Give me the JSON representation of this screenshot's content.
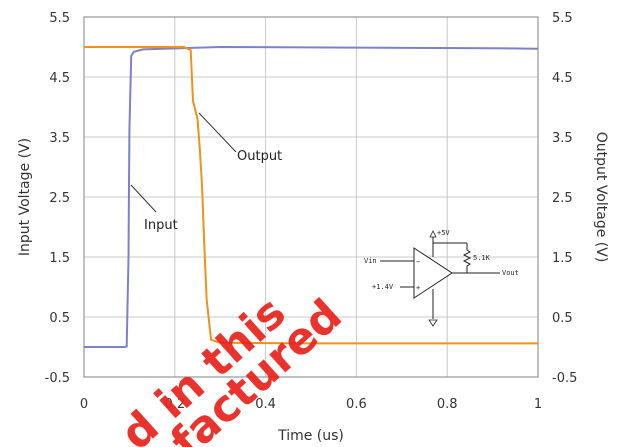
{
  "chart_data": {
    "type": "line",
    "xlabel": "Time (us)",
    "ylabel": "Input Voltage (V)",
    "y2label": "Output Voltage (V)",
    "xlim": [
      0,
      1
    ],
    "ylim": [
      -0.5,
      5.5
    ],
    "x_ticks": [
      "0",
      "0.2",
      "0.4",
      "0.6",
      "0.8",
      "1"
    ],
    "y_ticks": [
      "-0.5",
      "0.5",
      "1.5",
      "2.5",
      "3.5",
      "4.5",
      "5.5"
    ],
    "grid": true,
    "series": [
      {
        "name": "Input",
        "color": "#7b83c8",
        "x": [
          0,
          0.09,
          0.094,
          0.098,
          0.1,
          0.104,
          0.11,
          0.13,
          0.3,
          0.6,
          0.9,
          1.0
        ],
        "y": [
          0.0,
          0.0,
          0.01,
          1.5,
          3.6,
          4.85,
          4.92,
          4.96,
          5.0,
          4.99,
          4.98,
          4.97
        ]
      },
      {
        "name": "Output",
        "color": "#f0901d",
        "x": [
          0,
          0.1,
          0.22,
          0.235,
          0.24,
          0.25,
          0.255,
          0.26,
          0.265,
          0.27,
          0.28,
          0.3,
          0.5,
          0.8,
          1.0
        ],
        "y": [
          5.0,
          5.0,
          5.0,
          4.95,
          4.1,
          3.8,
          3.3,
          2.7,
          1.7,
          0.8,
          0.12,
          0.07,
          0.06,
          0.06,
          0.06
        ]
      }
    ],
    "annotations": [
      {
        "text": "Output",
        "series": "Output"
      },
      {
        "text": "Input",
        "series": "Input"
      }
    ],
    "schematic": {
      "supply_label": "+5V",
      "input_label": "Vin",
      "reference_label": "+1.4V",
      "resistor_label": "5.1K",
      "output_label": "Vout",
      "minus_sign": "−",
      "plus_sign": "+"
    },
    "watermark": [
      "d in this",
      "factured"
    ]
  }
}
